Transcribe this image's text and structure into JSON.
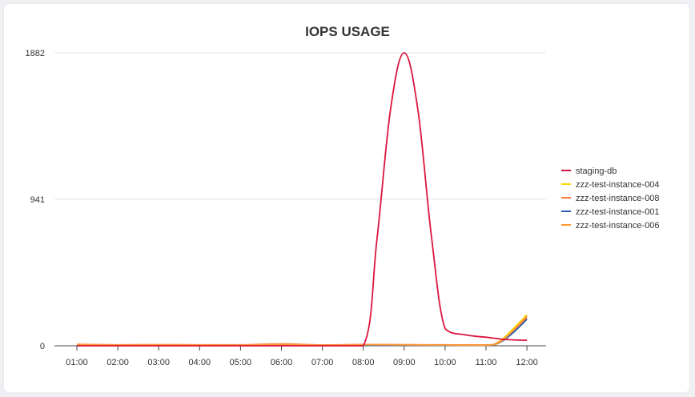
{
  "chart_data": {
    "type": "line",
    "title": "IOPS USAGE",
    "xlabel": "",
    "ylabel": "",
    "y_ticks": [
      "1882",
      "941",
      "0"
    ],
    "ylim": [
      0,
      1882
    ],
    "x_ticks": [
      "01:00",
      "02:00",
      "03:00",
      "04:00",
      "05:00",
      "06:00",
      "07:00",
      "08:00",
      "09:00",
      "10:00",
      "11:00",
      "12:00"
    ],
    "grid": "horizontal",
    "legend_position": "right",
    "series": [
      {
        "name": "staging-db",
        "color": "#dc143c",
        "x": [
          "01:00",
          "02:00",
          "03:00",
          "04:00",
          "05:00",
          "06:00",
          "07:00",
          "08:00",
          "08:20",
          "08:40",
          "09:00",
          "09:20",
          "09:40",
          "10:00",
          "10:30",
          "11:00",
          "11:30",
          "12:00"
        ],
        "y": [
          0,
          0,
          0,
          0,
          0,
          0,
          0,
          0,
          680,
          1520,
          1882,
          1520,
          700,
          110,
          70,
          55,
          40,
          35
        ]
      },
      {
        "name": "zzz-test-instance-004",
        "color": "#ffd700",
        "x": [
          "01:00",
          "02:00",
          "03:00",
          "04:00",
          "05:00",
          "06:00",
          "07:00",
          "08:00",
          "09:00",
          "10:00",
          "11:00",
          "11:20",
          "11:40",
          "12:00"
        ],
        "y": [
          6,
          4,
          5,
          4,
          5,
          7,
          4,
          6,
          5,
          4,
          3,
          30,
          110,
          200
        ]
      },
      {
        "name": "zzz-test-instance-008",
        "color": "#ff6f3c",
        "x": [
          "01:00",
          "02:00",
          "03:00",
          "04:00",
          "05:00",
          "06:00",
          "07:00",
          "08:00",
          "09:00",
          "10:00",
          "11:00",
          "11:20",
          "11:40",
          "12:00"
        ],
        "y": [
          10,
          6,
          7,
          6,
          6,
          12,
          5,
          8,
          7,
          6,
          5,
          25,
          95,
          180
        ]
      },
      {
        "name": "zzz-test-instance-001",
        "color": "#2a5fb0",
        "x": [
          "01:00",
          "02:00",
          "03:00",
          "04:00",
          "05:00",
          "06:00",
          "07:00",
          "08:00",
          "09:00",
          "10:00",
          "11:00",
          "11:20",
          "11:40",
          "12:00"
        ],
        "y": [
          4,
          3,
          4,
          3,
          4,
          5,
          3,
          4,
          4,
          3,
          3,
          20,
          85,
          170
        ]
      },
      {
        "name": "zzz-test-instance-006",
        "color": "#ff9933",
        "x": [
          "01:00",
          "02:00",
          "03:00",
          "04:00",
          "05:00",
          "06:00",
          "07:00",
          "08:00",
          "09:00",
          "10:00",
          "11:00",
          "11:20",
          "11:40",
          "12:00"
        ],
        "y": [
          8,
          5,
          6,
          5,
          5,
          9,
          4,
          7,
          6,
          5,
          4,
          22,
          100,
          190
        ]
      }
    ]
  }
}
